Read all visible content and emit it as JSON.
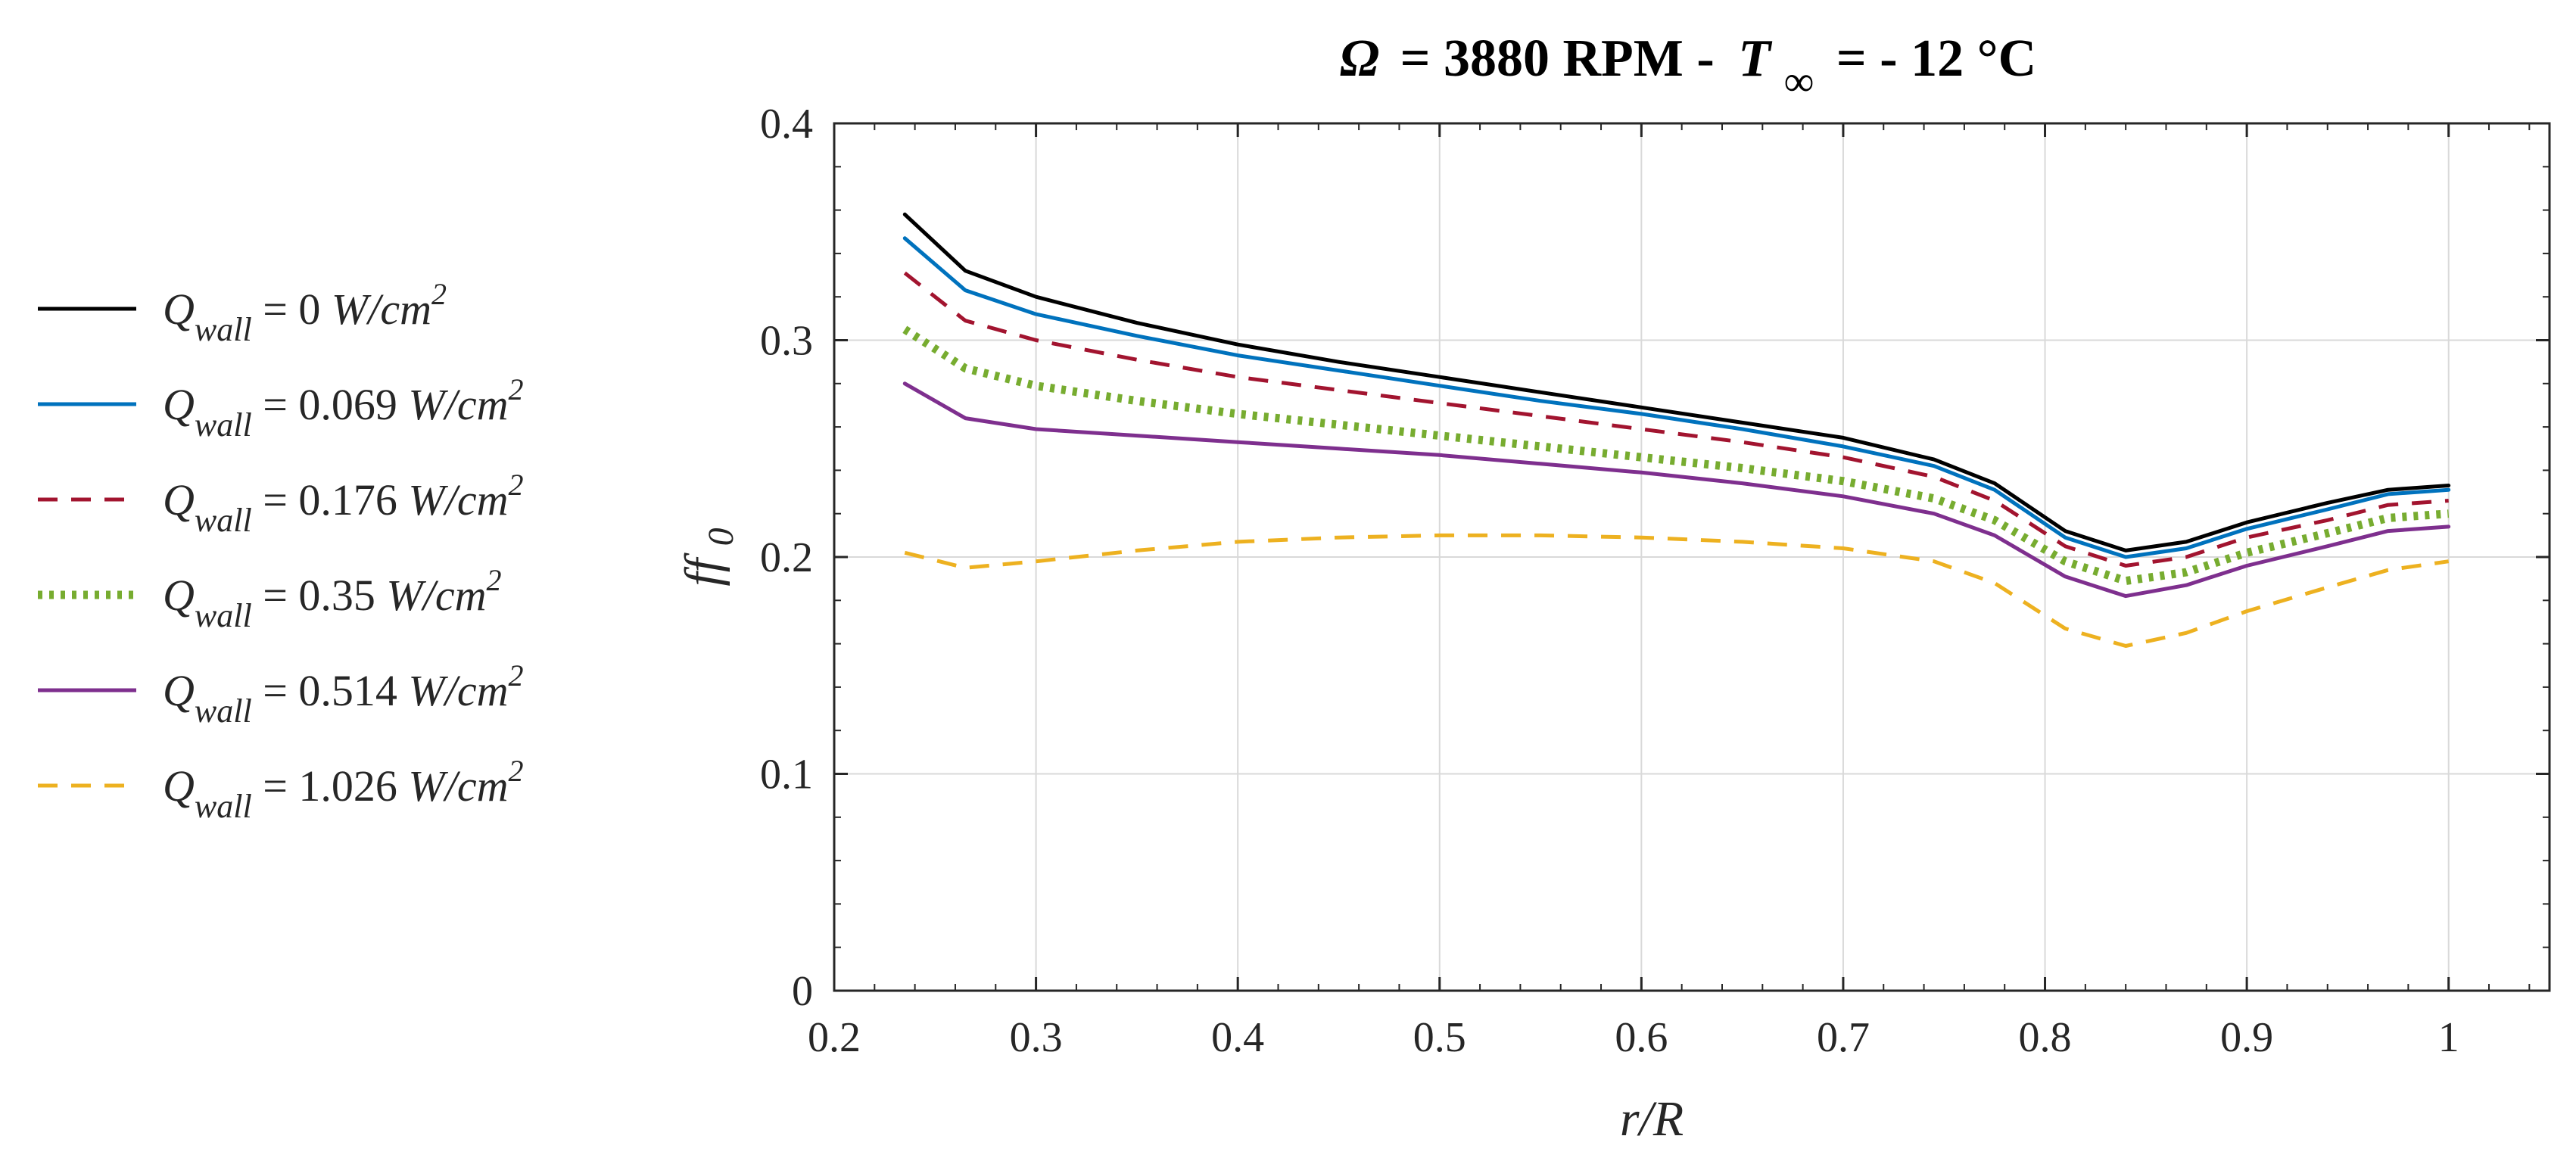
{
  "chart_data": {
    "type": "line",
    "title_parts": {
      "omega_symbol": "Ω",
      "speed": "= 3880 RPM -",
      "temp_symbol": "T",
      "temp_subscript": "∞",
      "temp_value": "= - 12 °C"
    },
    "xlabel": "r/R",
    "ylabel": "ff",
    "ylabel_subscript": "0",
    "xlim": [
      0.2,
      1.05
    ],
    "ylim": [
      0,
      0.4
    ],
    "xticks": [
      0.2,
      0.3,
      0.4,
      0.5,
      0.6,
      0.7,
      0.8,
      0.9,
      1.0
    ],
    "xtick_labels": [
      "0.2",
      "0.3",
      "0.4",
      "0.5",
      "0.6",
      "0.7",
      "0.8",
      "0.9",
      "1"
    ],
    "yticks": [
      0,
      0.1,
      0.2,
      0.3,
      0.4
    ],
    "ytick_labels": [
      "0",
      "0.1",
      "0.2",
      "0.3",
      "0.4"
    ],
    "grid": true,
    "legend_position": "left-outside",
    "x": [
      0.235,
      0.265,
      0.3,
      0.35,
      0.4,
      0.45,
      0.5,
      0.55,
      0.6,
      0.65,
      0.7,
      0.745,
      0.775,
      0.81,
      0.84,
      0.87,
      0.9,
      0.94,
      0.97,
      1.0
    ],
    "series": [
      {
        "name": "Q_wall = 0 W/cm^2",
        "label_main": "Q",
        "label_sub": "wall",
        "label_value": "= 0",
        "label_unit": "W/cm",
        "label_exp": "2",
        "color": "#000000",
        "dash": "solid",
        "values": [
          0.358,
          0.332,
          0.32,
          0.308,
          0.298,
          0.29,
          0.283,
          0.276,
          0.269,
          0.262,
          0.255,
          0.245,
          0.234,
          0.212,
          0.203,
          0.207,
          0.216,
          0.225,
          0.231,
          0.233
        ]
      },
      {
        "name": "Q_wall = 0.069 W/cm^2",
        "label_main": "Q",
        "label_sub": "wall",
        "label_value": "= 0.069",
        "label_unit": "W/cm",
        "label_exp": "2",
        "color": "#0072BD",
        "dash": "solid",
        "values": [
          0.347,
          0.323,
          0.312,
          0.302,
          0.293,
          0.286,
          0.279,
          0.272,
          0.266,
          0.259,
          0.251,
          0.242,
          0.231,
          0.209,
          0.2,
          0.204,
          0.213,
          0.222,
          0.229,
          0.231
        ]
      },
      {
        "name": "Q_wall = 0.176 W/cm^2",
        "label_main": "Q",
        "label_sub": "wall",
        "label_value": "= 0.176",
        "label_unit": "W/cm",
        "label_exp": "2",
        "color": "#A2142F",
        "dash": "dashed",
        "values": [
          0.331,
          0.309,
          0.3,
          0.291,
          0.283,
          0.277,
          0.271,
          0.265,
          0.259,
          0.253,
          0.246,
          0.237,
          0.226,
          0.205,
          0.196,
          0.2,
          0.209,
          0.217,
          0.224,
          0.226
        ]
      },
      {
        "name": "Q_wall = 0.35 W/cm^2",
        "label_main": "Q",
        "label_sub": "wall",
        "label_value": "= 0.35",
        "label_unit": "W/cm",
        "label_exp": "2",
        "color": "#77AC30",
        "dash": "dotted",
        "values": [
          0.305,
          0.287,
          0.279,
          0.272,
          0.266,
          0.261,
          0.256,
          0.251,
          0.246,
          0.241,
          0.235,
          0.227,
          0.217,
          0.198,
          0.189,
          0.193,
          0.202,
          0.211,
          0.218,
          0.22
        ]
      },
      {
        "name": "Q_wall = 0.514 W/cm^2",
        "label_main": "Q",
        "label_sub": "wall",
        "label_value": "= 0.514",
        "label_unit": "W/cm",
        "label_exp": "2",
        "color": "#7E2F8E",
        "dash": "solid",
        "values": [
          0.28,
          0.264,
          0.259,
          0.256,
          0.253,
          0.25,
          0.247,
          0.243,
          0.239,
          0.234,
          0.228,
          0.22,
          0.21,
          0.191,
          0.182,
          0.187,
          0.196,
          0.205,
          0.212,
          0.214
        ]
      },
      {
        "name": "Q_wall = 1.026 W/cm^2",
        "label_main": "Q",
        "label_sub": "wall",
        "label_value": "= 1.026",
        "label_unit": "W/cm",
        "label_exp": "2",
        "color": "#EDB120",
        "dash": "dashed",
        "values": [
          0.202,
          0.195,
          0.198,
          0.203,
          0.207,
          0.209,
          0.21,
          0.21,
          0.209,
          0.207,
          0.204,
          0.198,
          0.188,
          0.167,
          0.159,
          0.165,
          0.175,
          0.186,
          0.194,
          0.198
        ]
      }
    ]
  }
}
